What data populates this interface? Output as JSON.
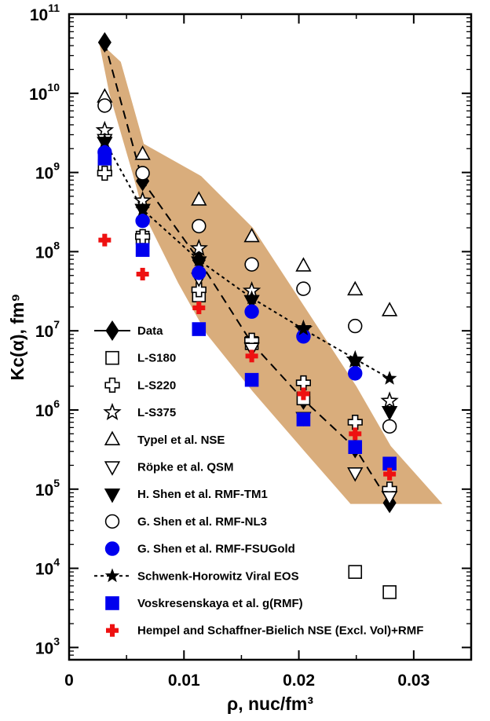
{
  "chart_data": {
    "type": "scatter",
    "title": "",
    "xlabel": "ρ, nuc/fm³",
    "ylabel": "Kc(α), fm⁹",
    "xlim": [
      0,
      0.035
    ],
    "ylim": [
      700,
      100000000000.0
    ],
    "yscale": "log",
    "grid": false,
    "legend_position": "lower-left",
    "x_ticks": [
      {
        "value": 0,
        "label": "0"
      },
      {
        "value": 0.01,
        "label": "0.01"
      },
      {
        "value": 0.02,
        "label": "0.02"
      },
      {
        "value": 0.03,
        "label": "0.03"
      }
    ],
    "y_ticks": [
      {
        "value": 1000,
        "base": "10",
        "exp": "3"
      },
      {
        "value": 10000,
        "base": "10",
        "exp": "4"
      },
      {
        "value": 100000,
        "base": "10",
        "exp": "5"
      },
      {
        "value": 1000000,
        "base": "10",
        "exp": "6"
      },
      {
        "value": 10000000,
        "base": "10",
        "exp": "7"
      },
      {
        "value": 100000000,
        "base": "10",
        "exp": "8"
      },
      {
        "value": 1000000000,
        "base": "10",
        "exp": "9"
      },
      {
        "value": 10000000000,
        "base": "10",
        "exp": "10"
      },
      {
        "value": 100000000000,
        "base": "10",
        "exp": "11"
      }
    ],
    "band": {
      "color": "#d9ad7c",
      "upper": [
        [
          0.0026,
          45000000000.0
        ],
        [
          0.0045,
          25000000000.0
        ],
        [
          0.0065,
          2300000000.0
        ],
        [
          0.0115,
          900000000.0
        ],
        [
          0.016,
          200000000.0
        ],
        [
          0.0205,
          20000000.0
        ],
        [
          0.025,
          2000000.0
        ],
        [
          0.028,
          350000.0
        ],
        [
          0.0325,
          65000.0
        ]
      ],
      "lower": [
        [
          0.0245,
          65000.0
        ],
        [
          0.0205,
          300000.0
        ],
        [
          0.016,
          1700000.0
        ],
        [
          0.012,
          9000000.0
        ],
        [
          0.0095,
          40000000.0
        ],
        [
          0.0065,
          300000000.0
        ],
        [
          0.0055,
          1000000000.0
        ],
        [
          0.0035,
          10000000000.0
        ]
      ]
    },
    "series": [
      {
        "name": "Data",
        "marker": "diamond",
        "color": "#000000",
        "fill": "filled",
        "line": "solid",
        "x": [
          0.0031,
          0.0064,
          0.0113,
          0.0159,
          0.0204,
          0.0249,
          0.0279
        ],
        "y": [
          44000000000.0,
          780000000.0,
          78000000.0,
          7000000.0,
          1350000.0,
          330000.0,
          67000.0
        ]
      },
      {
        "name": "L-S180",
        "marker": "square",
        "color": "#000000",
        "fill": "open",
        "line": "none",
        "x": [
          0.0031,
          0.0064,
          0.0113,
          0.0159,
          0.0204,
          0.0249,
          0.0279
        ],
        "y": [
          1200000000.0,
          150000000.0,
          28000000.0,
          7000000.0,
          1400000.0,
          9000.0,
          5000.0
        ]
      },
      {
        "name": "L-S220",
        "marker": "cross",
        "color": "#000000",
        "fill": "open",
        "line": "none",
        "x": [
          0.0031,
          0.0064,
          0.0113,
          0.0159,
          0.0204,
          0.0249,
          0.0279
        ],
        "y": [
          980000000.0,
          155000000.0,
          33000000.0,
          7600000.0,
          2200000.0,
          700000.0,
          100000.0
        ]
      },
      {
        "name": "L-S375",
        "marker": "star",
        "color": "#000000",
        "fill": "open",
        "line": "none",
        "x": [
          0.0031,
          0.0064,
          0.0113,
          0.0159,
          0.0204,
          0.0249,
          0.0279
        ],
        "y": [
          3400000000.0,
          440000000.0,
          110000000.0,
          32000000.0,
          10500000.0,
          4300000.0,
          1300000.0
        ]
      },
      {
        "name": "Typel et al. NSE",
        "marker": "triangle-up",
        "color": "#000000",
        "fill": "open",
        "line": "none",
        "x": [
          0.0031,
          0.0064,
          0.0113,
          0.0159,
          0.0204,
          0.0249,
          0.0279
        ],
        "y": [
          9000000000.0,
          1700000000.0,
          450000000.0,
          155000000.0,
          66000000.0,
          33000000.0,
          18000000.0
        ]
      },
      {
        "name": "Röpke et al. QSM",
        "marker": "triangle-down",
        "color": "#000000",
        "fill": "open",
        "line": "none",
        "x": [
          0.0031,
          0.0064,
          0.0113,
          0.0159,
          0.0204,
          0.0249,
          0.0279
        ],
        "y": [
          2600000000.0,
          340000000.0,
          46000000.0,
          6000000.0,
          800000.0,
          160000.0,
          80000.0
        ]
      },
      {
        "name": "H. Shen et al. RMF-TM1",
        "marker": "triangle-down",
        "color": "#000000",
        "fill": "filled",
        "line": "none",
        "x": [
          0.0031,
          0.0064,
          0.0113,
          0.0159,
          0.0204,
          0.0249,
          0.0279
        ],
        "y": [
          2400000000.0,
          340000000.0,
          74000000.0,
          24000000.0,
          10000000.0,
          4000000.0,
          950000.0
        ]
      },
      {
        "name": "G. Shen et al. RMF-NL3",
        "marker": "circle",
        "color": "#000000",
        "fill": "open",
        "line": "none",
        "x": [
          0.0031,
          0.0064,
          0.0113,
          0.0159,
          0.0204,
          0.0249,
          0.0279
        ],
        "y": [
          7000000000.0,
          980000000.0,
          210000000.0,
          69000000.0,
          34000000.0,
          11500000.0,
          620000.0
        ]
      },
      {
        "name": "G. Shen et al. RMF-FSUGold",
        "marker": "circle",
        "color": "#0000ee",
        "fill": "filled",
        "line": "none",
        "x": [
          0.0031,
          0.0064,
          0.0113,
          0.0159,
          0.0204,
          0.0249
        ],
        "y": [
          1800000000.0,
          245000000.0,
          54000000.0,
          17500000.0,
          8500000.0,
          2900000.0
        ]
      },
      {
        "name": "Schwenk-Horowitz Viral EOS",
        "marker": "star",
        "color": "#000000",
        "fill": "filled",
        "line": "dotted",
        "x": [
          0.0031,
          0.0064,
          0.0113,
          0.0159,
          0.0204,
          0.0249,
          0.0279
        ],
        "y": [
          2500000000.0,
          340000000.0,
          78000000.0,
          26000000.0,
          10500000.0,
          4400000.0,
          2500000.0
        ]
      },
      {
        "name": "Voskresenskaya et al. g(RMF)",
        "marker": "square",
        "color": "#0000ee",
        "fill": "filled",
        "line": "none",
        "x": [
          0.0031,
          0.0064,
          0.0113,
          0.0159,
          0.0204,
          0.0249,
          0.0279
        ],
        "y": [
          1500000000.0,
          105000000.0,
          10500000.0,
          2400000.0,
          760000.0,
          340000.0,
          210000.0
        ]
      },
      {
        "name": "Hempel and Schaffner-Bielich NSE (Excl. Vol)+RMF",
        "marker": "plus",
        "color": "#ee1111",
        "fill": "filled",
        "line": "none",
        "x": [
          0.0031,
          0.0064,
          0.0113,
          0.0159,
          0.0204,
          0.0249,
          0.0279
        ],
        "y": [
          140000000.0,
          52000000.0,
          19500000.0,
          4800000.0,
          1600000.0,
          500000.0,
          155000.0
        ]
      }
    ]
  }
}
